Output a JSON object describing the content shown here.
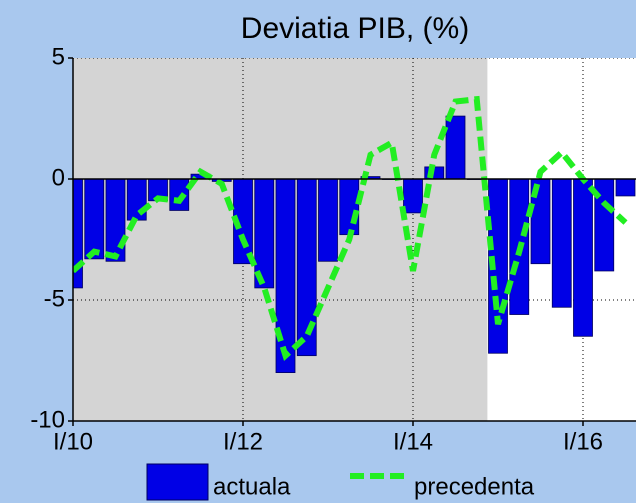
{
  "chart_data": {
    "type": "bar_line",
    "title": "Deviatia PIB, (%)",
    "categories": [
      "I/10",
      null,
      null,
      null,
      null,
      null,
      null,
      null,
      "I/12",
      null,
      null,
      null,
      null,
      null,
      null,
      null,
      "I/14",
      null,
      null,
      null,
      null,
      null,
      null,
      null,
      "I/16",
      null,
      null
    ],
    "series": [
      {
        "name": "actuala",
        "kind": "bar",
        "color": "#0000e6",
        "values": [
          -4.5,
          -3.3,
          -3.4,
          -1.7,
          -0.9,
          -1.3,
          0.2,
          -0.1,
          -3.5,
          -4.5,
          -8.0,
          -7.3,
          -3.4,
          -2.3,
          0.1,
          0.0,
          -1.4,
          0.5,
          2.6,
          0.0,
          -7.2,
          -5.6,
          -3.5,
          -5.3,
          -6.5,
          -3.8,
          -0.7
        ]
      },
      {
        "name": "precedenta",
        "kind": "line",
        "color": "#22ee22",
        "dashed": true,
        "values": [
          -3.8,
          -3.0,
          -3.2,
          -1.5,
          -0.8,
          -0.9,
          0.3,
          -0.2,
          -2.5,
          -4.5,
          -7.3,
          -6.5,
          -4.5,
          -2.5,
          1.0,
          1.5,
          -3.8,
          1.0,
          3.2,
          3.3,
          -6.0,
          -3.0,
          0.3,
          1.1,
          0.0,
          -1.0,
          -1.8
        ]
      }
    ],
    "ylim": [
      -10,
      5
    ],
    "yticks": [
      -10,
      -5,
      0,
      5
    ],
    "grid": true,
    "shaded_until": 19.5,
    "shade_color": "#d4d4d4",
    "legend": "bottom"
  }
}
